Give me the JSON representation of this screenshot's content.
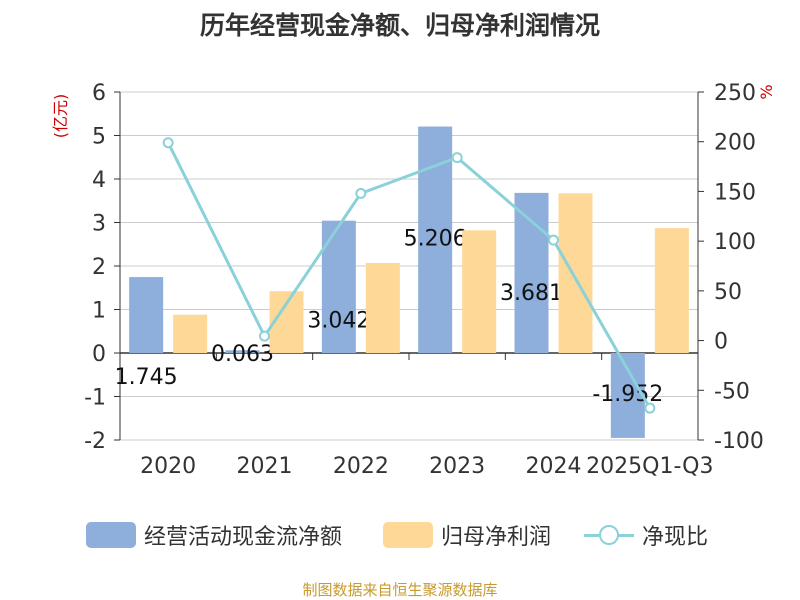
{
  "title": "历年经营现金净额、归母净利润情况",
  "source": "制图数据来自恒生聚源数据库",
  "legend": {
    "cash": "经营活动现金流净额",
    "profit": "归母净利润",
    "ratio": "净现比"
  },
  "chart_data": {
    "type": "bar",
    "title": "历年经营现金净额、归母净利润情况",
    "categories": [
      "2020",
      "2021",
      "2022",
      "2023",
      "2024",
      "2025Q1-Q3"
    ],
    "left_axis": {
      "label": "(亿元)",
      "ylim": [
        -2,
        6
      ],
      "ticks": [
        6,
        5,
        4,
        3,
        2,
        1,
        0,
        -1,
        -2
      ]
    },
    "right_axis": {
      "label": "%",
      "ylim": [
        -100,
        250
      ],
      "ticks": [
        250,
        200,
        150,
        100,
        50,
        0,
        -50,
        -100
      ]
    },
    "grid": true,
    "legend_position": "bottom",
    "series": [
      {
        "name": "经营活动现金流净额",
        "type": "bar",
        "axis": "left",
        "color": "#8eaedb",
        "values": [
          1.745,
          0.063,
          3.042,
          5.206,
          3.681,
          -1.952
        ],
        "labels": [
          "1.745",
          "0.063",
          "3.042",
          "5.206",
          "3.681",
          "-1.952"
        ]
      },
      {
        "name": "归母净利润",
        "type": "bar",
        "axis": "left",
        "color": "#fdd897",
        "values": [
          0.88,
          1.42,
          2.07,
          2.82,
          3.67,
          2.87
        ]
      },
      {
        "name": "净现比",
        "type": "line",
        "axis": "right",
        "color": "#8ad1d9",
        "values": [
          199,
          4.5,
          148,
          184,
          101,
          -68
        ]
      }
    ]
  }
}
